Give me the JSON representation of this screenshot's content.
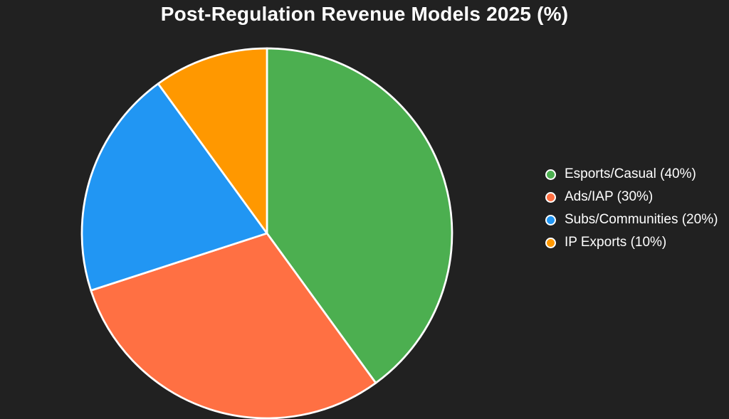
{
  "page": {
    "background_color": "#212121",
    "text_color": "#ffffff"
  },
  "chart_data": {
    "type": "pie",
    "title": "Post-Regulation Revenue Models 2025 (%)",
    "categories": [
      "Esports/Casual",
      "Ads/IAP",
      "Subs/Communities",
      "IP Exports"
    ],
    "values": [
      40,
      30,
      20,
      10
    ],
    "unit": "%",
    "colors": [
      "#4caf50",
      "#ff7043",
      "#2196f3",
      "#ff9800"
    ],
    "legend_labels": [
      "Esports/Casual (40%)",
      "Ads/IAP (30%)",
      "Subs/Communities (20%)",
      "IP Exports (10%)"
    ],
    "legend_position": "right",
    "start_angle": "12-oclock",
    "direction": "clockwise",
    "slice_border_color": "#ffffff",
    "background": "#212121"
  }
}
